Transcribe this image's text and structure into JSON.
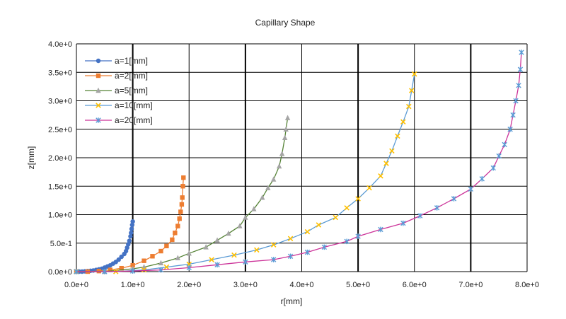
{
  "chart_data": {
    "type": "scatter",
    "title": "Capillary Shape",
    "xlabel": "r[mm]",
    "ylabel": "z[mm]",
    "xlim": [
      0,
      8
    ],
    "ylim": [
      0,
      4
    ],
    "x_ticks": [
      0,
      1,
      2,
      3,
      4,
      5,
      6,
      7,
      8
    ],
    "y_ticks": [
      0,
      0.5,
      1,
      1.5,
      2,
      2.5,
      3,
      3.5,
      4
    ],
    "x_tick_labels": [
      "0.0e+0",
      "1.0e+0",
      "2.0e+0",
      "3.0e+0",
      "4.0e+0",
      "5.0e+0",
      "6.0e+0",
      "7.0e+0",
      "8.0e+0"
    ],
    "y_tick_labels": [
      "0.0e+0",
      "5.0e-1",
      "1.0e+0",
      "1.5e+0",
      "2.0e+0",
      "2.5e+0",
      "3.0e+0",
      "3.5e+0",
      "4.0e+0"
    ],
    "grid": true,
    "legend_position": "top-left",
    "series": [
      {
        "name": "a=1[mm]",
        "marker": "circle",
        "color": "#4472C4",
        "line_color": "#4472C4",
        "points": [
          [
            0,
            0
          ],
          [
            0.05,
            0
          ],
          [
            0.1,
            0
          ],
          [
            0.15,
            0.005
          ],
          [
            0.2,
            0.01
          ],
          [
            0.25,
            0.015
          ],
          [
            0.3,
            0.02
          ],
          [
            0.35,
            0.03
          ],
          [
            0.4,
            0.04
          ],
          [
            0.45,
            0.05
          ],
          [
            0.5,
            0.07
          ],
          [
            0.55,
            0.09
          ],
          [
            0.6,
            0.11
          ],
          [
            0.65,
            0.14
          ],
          [
            0.7,
            0.17
          ],
          [
            0.75,
            0.21
          ],
          [
            0.8,
            0.26
          ],
          [
            0.85,
            0.31
          ],
          [
            0.88,
            0.36
          ],
          [
            0.9,
            0.42
          ],
          [
            0.92,
            0.48
          ],
          [
            0.94,
            0.54
          ],
          [
            0.96,
            0.62
          ],
          [
            0.97,
            0.68
          ],
          [
            0.98,
            0.75
          ],
          [
            0.99,
            0.82
          ],
          [
            1.0,
            0.88
          ]
        ]
      },
      {
        "name": "a=2[mm]",
        "marker": "square",
        "color": "#ED7D31",
        "line_color": "#ED7D31",
        "points": [
          [
            0,
            0
          ],
          [
            0.2,
            0
          ],
          [
            0.4,
            0.01
          ],
          [
            0.6,
            0.03
          ],
          [
            0.8,
            0.06
          ],
          [
            1.0,
            0.11
          ],
          [
            1.2,
            0.19
          ],
          [
            1.35,
            0.27
          ],
          [
            1.5,
            0.36
          ],
          [
            1.6,
            0.45
          ],
          [
            1.7,
            0.56
          ],
          [
            1.75,
            0.68
          ],
          [
            1.8,
            0.8
          ],
          [
            1.83,
            0.93
          ],
          [
            1.85,
            1.05
          ],
          [
            1.87,
            1.18
          ],
          [
            1.88,
            1.3
          ],
          [
            1.89,
            1.5
          ],
          [
            1.9,
            1.65
          ]
        ]
      },
      {
        "name": "a=5[mm]",
        "marker": "triangle",
        "color": "#A5A5A5",
        "line_color": "#548235",
        "points": [
          [
            0,
            0
          ],
          [
            0.5,
            0
          ],
          [
            1.0,
            0.05
          ],
          [
            1.2,
            0.08
          ],
          [
            1.5,
            0.15
          ],
          [
            1.8,
            0.24
          ],
          [
            2.0,
            0.32
          ],
          [
            2.3,
            0.43
          ],
          [
            2.5,
            0.55
          ],
          [
            2.7,
            0.67
          ],
          [
            2.9,
            0.8
          ],
          [
            3.0,
            0.95
          ],
          [
            3.15,
            1.1
          ],
          [
            3.3,
            1.3
          ],
          [
            3.4,
            1.47
          ],
          [
            3.5,
            1.62
          ],
          [
            3.6,
            1.85
          ],
          [
            3.65,
            2.07
          ],
          [
            3.7,
            2.35
          ],
          [
            3.72,
            2.5
          ],
          [
            3.75,
            2.7
          ]
        ]
      },
      {
        "name": "a=10[mm]",
        "marker": "x",
        "color": "#FFC000",
        "line_color": "#5B9BD5",
        "points": [
          [
            0,
            0
          ],
          [
            0.7,
            0
          ],
          [
            1.2,
            0.03
          ],
          [
            1.6,
            0.08
          ],
          [
            2.0,
            0.13
          ],
          [
            2.4,
            0.21
          ],
          [
            2.8,
            0.29
          ],
          [
            3.2,
            0.38
          ],
          [
            3.5,
            0.47
          ],
          [
            3.8,
            0.58
          ],
          [
            4.1,
            0.7
          ],
          [
            4.3,
            0.82
          ],
          [
            4.6,
            0.95
          ],
          [
            4.8,
            1.12
          ],
          [
            5.0,
            1.28
          ],
          [
            5.2,
            1.47
          ],
          [
            5.4,
            1.68
          ],
          [
            5.5,
            1.9
          ],
          [
            5.6,
            2.12
          ],
          [
            5.7,
            2.38
          ],
          [
            5.8,
            2.63
          ],
          [
            5.9,
            2.9
          ],
          [
            5.95,
            3.18
          ],
          [
            6.0,
            3.47
          ]
        ]
      },
      {
        "name": "a=20[mm]",
        "marker": "star",
        "color": "#5B9BD5",
        "line_color": "#CC3399",
        "points": [
          [
            0,
            0
          ],
          [
            0.5,
            0
          ],
          [
            1.0,
            0.01
          ],
          [
            1.5,
            0.03
          ],
          [
            2.0,
            0.07
          ],
          [
            2.5,
            0.12
          ],
          [
            3.0,
            0.17
          ],
          [
            3.5,
            0.21
          ],
          [
            3.8,
            0.27
          ],
          [
            4.1,
            0.34
          ],
          [
            4.4,
            0.43
          ],
          [
            4.8,
            0.53
          ],
          [
            5.0,
            0.62
          ],
          [
            5.4,
            0.74
          ],
          [
            5.8,
            0.85
          ],
          [
            6.1,
            0.98
          ],
          [
            6.4,
            1.12
          ],
          [
            6.7,
            1.28
          ],
          [
            7.0,
            1.45
          ],
          [
            7.2,
            1.63
          ],
          [
            7.4,
            1.82
          ],
          [
            7.5,
            2.03
          ],
          [
            7.6,
            2.23
          ],
          [
            7.7,
            2.5
          ],
          [
            7.75,
            2.75
          ],
          [
            7.8,
            3.0
          ],
          [
            7.85,
            3.27
          ],
          [
            7.88,
            3.55
          ],
          [
            7.9,
            3.85
          ]
        ]
      }
    ]
  }
}
